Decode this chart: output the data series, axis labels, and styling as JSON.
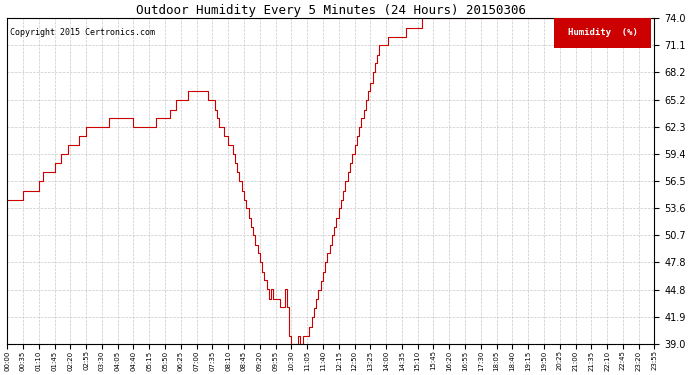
{
  "title": "Outdoor Humidity Every 5 Minutes (24 Hours) 20150306",
  "copyright": "Copyright 2015 Certronics.com",
  "legend_label": "Humidity  (%)",
  "line_color": "#cc0000",
  "background_color": "#ffffff",
  "grid_color": "#bbbbbb",
  "ylim": [
    39.0,
    74.0
  ],
  "yticks": [
    39.0,
    41.9,
    44.8,
    47.8,
    50.7,
    53.6,
    56.5,
    59.4,
    62.3,
    65.2,
    68.2,
    71.1,
    74.0
  ],
  "humidity_data": [
    54.5,
    54.5,
    54.5,
    54.5,
    54.5,
    54.5,
    54.5,
    55.5,
    55.5,
    55.5,
    55.5,
    55.5,
    55.5,
    55.5,
    56.5,
    56.5,
    57.5,
    57.5,
    57.5,
    57.5,
    57.5,
    58.5,
    58.5,
    58.5,
    59.4,
    59.4,
    59.4,
    60.4,
    60.4,
    60.4,
    60.4,
    60.4,
    61.4,
    61.4,
    61.4,
    62.3,
    62.3,
    62.3,
    62.3,
    62.3,
    62.3,
    62.3,
    62.3,
    62.3,
    62.3,
    63.3,
    63.3,
    63.3,
    63.3,
    63.3,
    63.3,
    63.3,
    63.3,
    63.3,
    63.3,
    63.3,
    62.3,
    62.3,
    62.3,
    62.3,
    62.3,
    62.3,
    62.3,
    62.3,
    62.3,
    62.3,
    63.3,
    63.3,
    63.3,
    63.3,
    63.3,
    63.3,
    64.2,
    64.2,
    64.2,
    65.2,
    65.2,
    65.2,
    65.2,
    65.2,
    66.2,
    66.2,
    66.2,
    66.2,
    66.2,
    66.2,
    66.2,
    66.2,
    66.2,
    65.2,
    65.2,
    65.2,
    64.2,
    63.3,
    62.3,
    62.3,
    61.4,
    61.4,
    60.4,
    60.4,
    59.4,
    58.5,
    57.5,
    56.5,
    55.5,
    54.5,
    53.6,
    52.6,
    51.6,
    50.7,
    49.7,
    48.8,
    47.8,
    46.8,
    45.9,
    44.9,
    43.9,
    44.9,
    43.9,
    43.9,
    43.9,
    43.0,
    43.0,
    44.9,
    43.0,
    39.9,
    39.0,
    39.0,
    39.0,
    39.9,
    39.0,
    39.9,
    39.9,
    39.9,
    40.9,
    41.9,
    42.9,
    43.9,
    44.8,
    45.8,
    46.8,
    47.8,
    48.8,
    49.7,
    50.7,
    51.6,
    52.6,
    53.6,
    54.5,
    55.5,
    56.5,
    57.5,
    58.5,
    59.4,
    60.4,
    61.4,
    62.3,
    63.3,
    64.2,
    65.2,
    66.2,
    67.1,
    68.2,
    69.2,
    70.1,
    71.1,
    71.1,
    71.1,
    71.1,
    72.0,
    72.0,
    72.0,
    72.0,
    72.0,
    72.0,
    72.0,
    72.0,
    73.0,
    73.0,
    73.0,
    73.0,
    73.0,
    73.0,
    73.0,
    74.0,
    74.0,
    74.0,
    74.0,
    74.0,
    74.0,
    74.0,
    74.0,
    74.0,
    74.0,
    74.0,
    74.0,
    74.0,
    74.0,
    74.0,
    74.0,
    74.0,
    74.0,
    74.0,
    74.0,
    74.0,
    74.0,
    74.0,
    74.0,
    74.0,
    74.0,
    74.0,
    74.0,
    74.0,
    74.0,
    74.0,
    74.0,
    74.0,
    74.0,
    74.0,
    74.0,
    74.0,
    74.0,
    74.0,
    74.0,
    74.0,
    74.0,
    74.0,
    74.0,
    74.0,
    74.0,
    74.0,
    74.0,
    74.0,
    74.0,
    74.0,
    74.0,
    74.0,
    74.0,
    74.0,
    74.0,
    74.0,
    74.0,
    74.0,
    74.0,
    74.0,
    74.0,
    74.0,
    74.0,
    74.0,
    74.0,
    74.0,
    74.0,
    74.0,
    74.0,
    74.0,
    74.0,
    74.0,
    74.0,
    74.0,
    74.0,
    74.0,
    74.0,
    74.0,
    74.0,
    74.0,
    74.0,
    74.0,
    74.0,
    74.0,
    74.0,
    74.0,
    74.0,
    74.0,
    74.0,
    74.0,
    74.0,
    74.0,
    74.0,
    74.0,
    74.0,
    74.0,
    74.0,
    74.0,
    74.0,
    74.0,
    74.0,
    74.0,
    74.0,
    74.0
  ],
  "tick_step": 7,
  "figwidth": 6.9,
  "figheight": 3.75,
  "dpi": 100
}
